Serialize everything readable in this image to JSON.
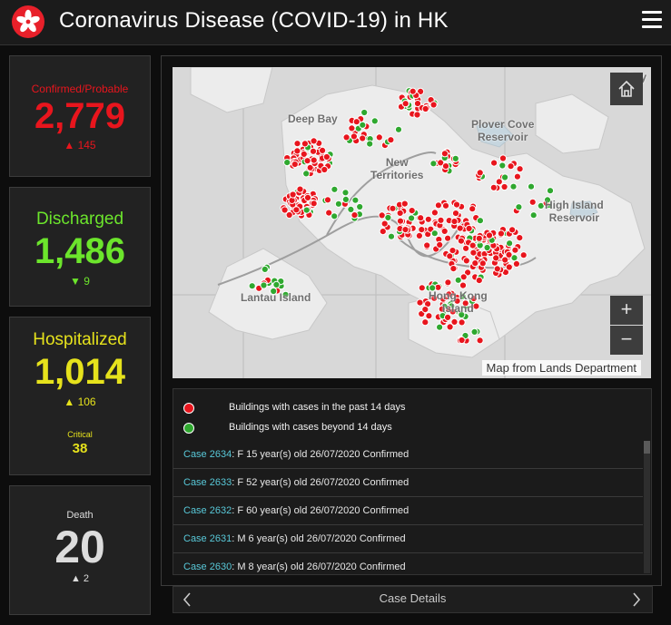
{
  "header": {
    "title": "Coronavirus Disease (COVID-19) in HK",
    "logo_icon": "bauhinia-logo-icon",
    "menu_icon": "hamburger-menu-icon"
  },
  "stats": {
    "confirmed": {
      "label": "Confirmed/Probable",
      "value": "2,779",
      "delta": "▲ 145",
      "color": "#e8151d"
    },
    "discharged": {
      "label": "Discharged",
      "value": "1,486",
      "delta": "▼ 9",
      "color": "#6ce52c"
    },
    "hospitalized": {
      "label": "Hospitalized",
      "value": "1,014",
      "delta": "▲ 106",
      "color": "#e6e21c",
      "sub_label": "Critical",
      "sub_value": "38"
    },
    "death": {
      "label": "Death",
      "value": "20",
      "delta": "▲ 2",
      "color": "#dcdcdc"
    }
  },
  "map": {
    "labels": {
      "deep_bay": "Deep Bay",
      "new_territories": "New\nTerritories",
      "plover_cove": "Plover Cove\nReservoir",
      "high_island": "High Island\nReservoir",
      "lantau": "Lantau Island",
      "hong_kong": "Hong Kong\nIsland",
      "bay": "Bay"
    },
    "attribution": "Map from Lands Department",
    "home_icon": "home-icon",
    "zoom_in": "+",
    "zoom_out": "−",
    "recent_color": "#e8151d",
    "older_color": "#2fa82f"
  },
  "legend": {
    "recent": "Buildings with cases in the past 14 days",
    "older": "Buildings with cases beyond 14 days"
  },
  "cases": [
    {
      "id": "Case 2634",
      "details": ": F  15 year(s) old  26/07/2020 Confirmed"
    },
    {
      "id": "Case 2633",
      "details": ": F  52 year(s) old  26/07/2020 Confirmed"
    },
    {
      "id": "Case 2632",
      "details": ": F  60 year(s) old  26/07/2020 Confirmed"
    },
    {
      "id": "Case 2631",
      "details": ": M  6 year(s) old  26/07/2020 Confirmed"
    },
    {
      "id": "Case 2630",
      "details": ": M  8 year(s) old  26/07/2020 Confirmed"
    }
  ],
  "footer": {
    "title": "Case Details",
    "prev_icon": "chevron-left-icon",
    "next_icon": "chevron-right-icon"
  }
}
